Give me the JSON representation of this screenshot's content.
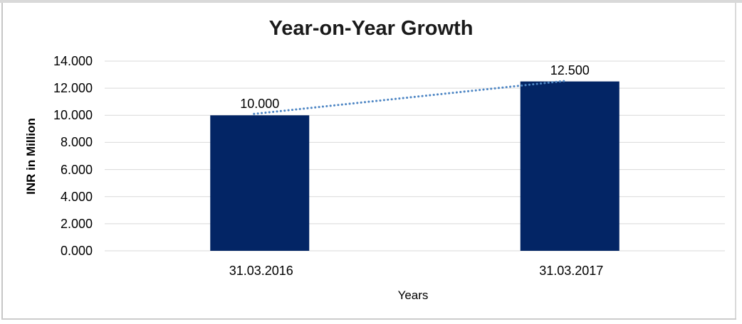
{
  "window": {
    "background": "#ffffff",
    "frame": {
      "top_color": "#d9d9d9",
      "left_color": "#c6c6c6",
      "right_color": "#d9d9d9",
      "bottom_color": "#cccccc"
    }
  },
  "chart_data": {
    "type": "bar",
    "title": "Year-on-Year Growth",
    "title_color": "#1a1a1a",
    "xlabel": "Years",
    "ylabel": "INR in Million",
    "categories": [
      "31.03.2016",
      "31.03.2017"
    ],
    "series": [
      {
        "values": [
          10.0,
          12.5
        ],
        "data_labels": [
          "10.000",
          "12.500"
        ],
        "color": "#032565"
      }
    ],
    "trendline": {
      "style": "dotted",
      "color": "#4e86c4",
      "from_value": 10.0,
      "to_value": 12.5
    },
    "ylim": [
      0,
      14
    ],
    "ytick_step": 2,
    "ytick_labels": [
      "0.000",
      "2.000",
      "4.000",
      "6.000",
      "8.000",
      "10.000",
      "12.000",
      "14.000"
    ],
    "grid": "horizontal",
    "gridline_color": "#d9d9d9",
    "axis_text_color": "#000000",
    "legend": "none"
  }
}
